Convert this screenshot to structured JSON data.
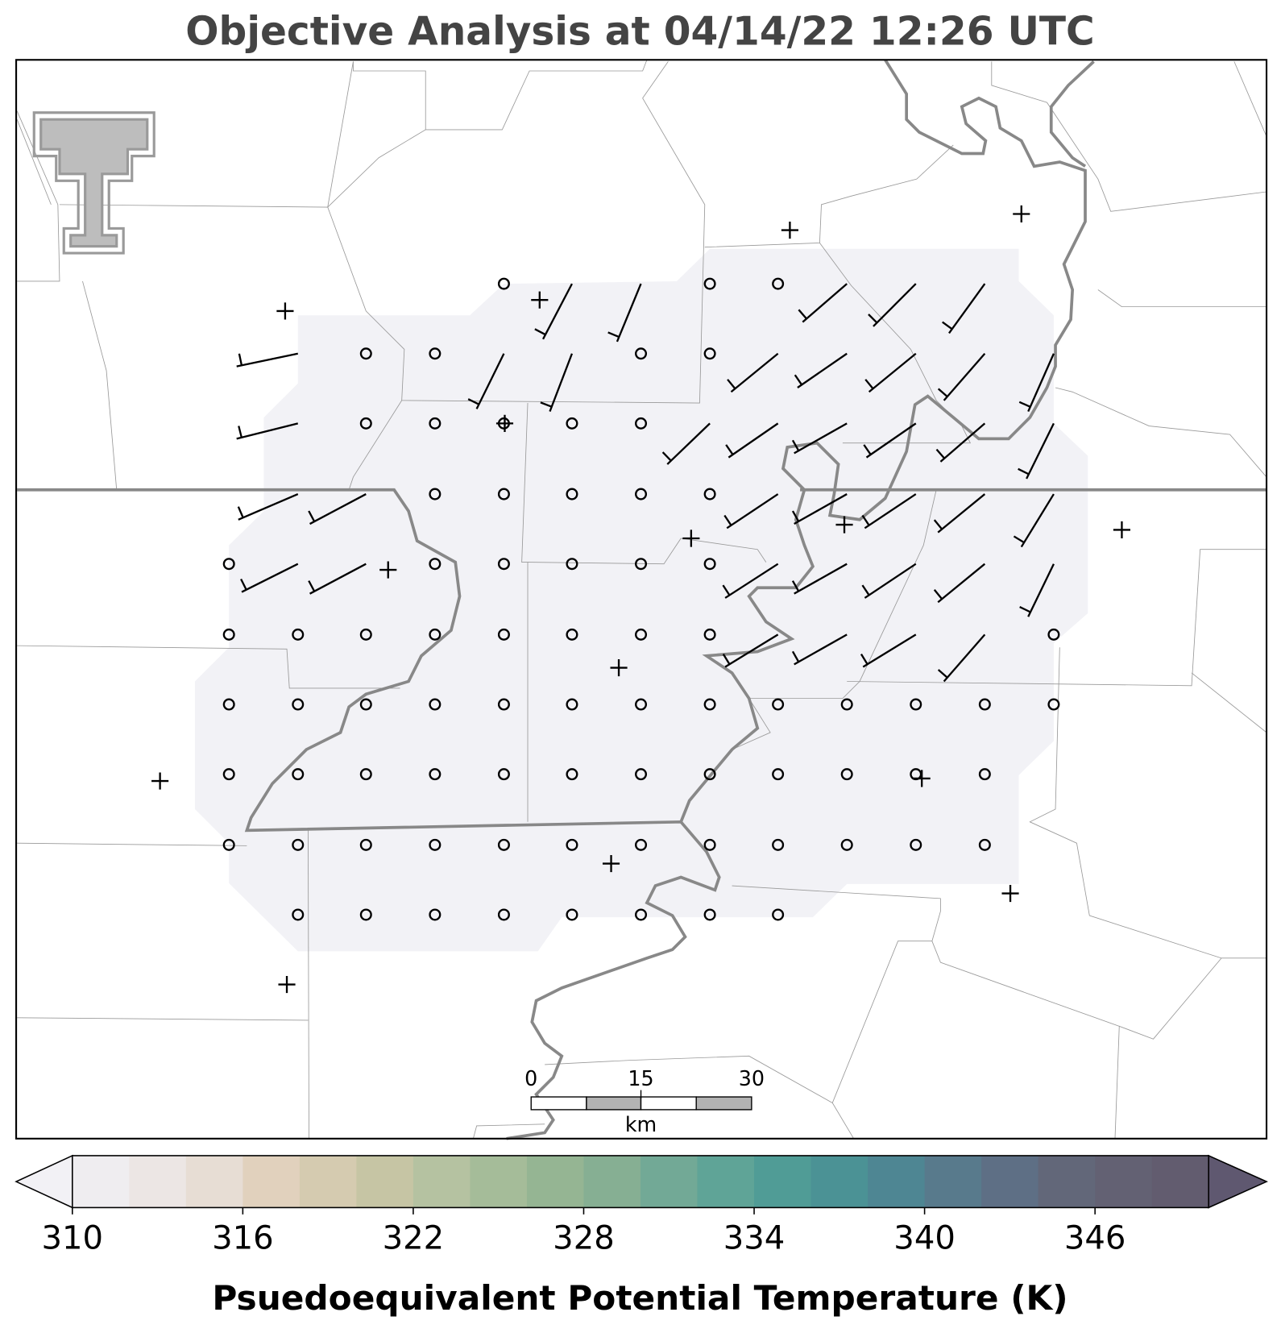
{
  "title": "Objective Analysis at 04/14/22 12:26 UTC",
  "scale_bar": {
    "ticks": [
      "0",
      "15",
      "30"
    ],
    "unit": "km"
  },
  "colorbar": {
    "label": "Psuedoequivalent Potential Temperature (K)",
    "lim": [
      310,
      350
    ],
    "ticks": [
      310,
      316,
      322,
      328,
      334,
      340,
      346
    ],
    "colors": [
      "#efedf0",
      "#ece6e4",
      "#e7ddd4",
      "#e1d1bd",
      "#d5cbb0",
      "#c6c5a4",
      "#b5c2a1",
      "#a5bc99",
      "#95b593",
      "#86af93",
      "#72a996",
      "#5fa497",
      "#509c96",
      "#4b9295",
      "#4e8693",
      "#587a8c",
      "#5e6f85",
      "#626779",
      "#636173",
      "#625c6f"
    ],
    "under": "#f2f1f5",
    "over": "#5f5870"
  }
}
